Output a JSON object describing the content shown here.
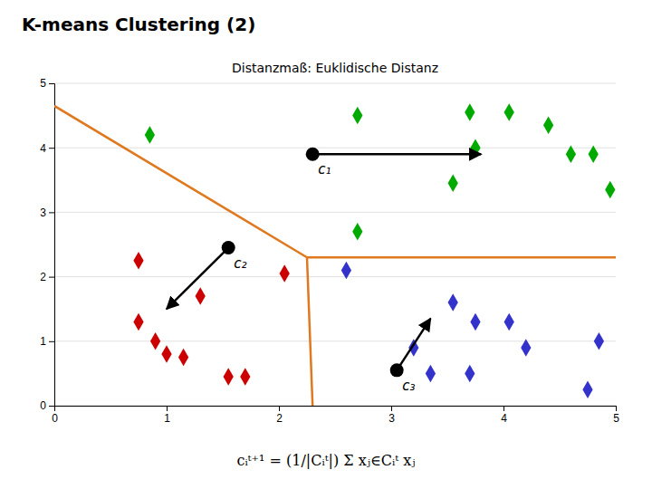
{
  "chart_data": {
    "type": "scatter",
    "title": "K-means Clustering (2)",
    "subtitle": "Distanzmaß: Euklidische Distanz",
    "xlim": [
      0,
      5
    ],
    "ylim": [
      0,
      5
    ],
    "xticks": [
      0,
      1,
      2,
      3,
      4,
      5
    ],
    "yticks": [
      0,
      1,
      2,
      3,
      4,
      5
    ],
    "grid": "y",
    "series": [
      {
        "color": "#00AA00",
        "marker": "diamond",
        "x": [
          0.85,
          2.7,
          3.7,
          4.05,
          4.4,
          3.75,
          4.6,
          4.8,
          3.55,
          4.95,
          2.7
        ],
        "y": [
          4.2,
          4.5,
          4.55,
          4.55,
          4.35,
          4.0,
          3.9,
          3.9,
          3.45,
          3.35,
          2.7
        ]
      },
      {
        "color": "#CC0000",
        "marker": "diamond",
        "x": [
          0.75,
          0.75,
          0.9,
          1.0,
          1.15,
          1.55,
          1.7,
          1.3,
          2.05
        ],
        "y": [
          2.25,
          1.3,
          1.0,
          0.8,
          0.75,
          0.45,
          0.45,
          1.7,
          2.05
        ]
      },
      {
        "color": "#3333CC",
        "marker": "diamond",
        "x": [
          2.6,
          3.2,
          3.35,
          3.7,
          3.75,
          4.05,
          4.2,
          4.85,
          4.75,
          3.55
        ],
        "y": [
          2.1,
          0.9,
          0.5,
          0.5,
          1.3,
          1.3,
          0.9,
          1.0,
          0.25,
          1.6
        ]
      }
    ],
    "centroids": [
      {
        "label": "c₁",
        "old": [
          2.3,
          3.9
        ],
        "new": [
          3.8,
          3.9
        ]
      },
      {
        "label": "c₂",
        "old": [
          1.55,
          2.45
        ],
        "new": [
          1.0,
          1.5
        ]
      },
      {
        "label": "c₃",
        "old": [
          3.05,
          0.55
        ],
        "new": [
          3.35,
          1.35
        ]
      }
    ],
    "boundary": {
      "color": "#E07820",
      "lines": [
        {
          "x": [
            0,
            2.25
          ],
          "y": [
            4.65,
            2.3
          ]
        },
        {
          "x": [
            2.25,
            5
          ],
          "y": [
            2.3,
            2.3
          ]
        },
        {
          "x": [
            2.25,
            2.3
          ],
          "y": [
            2.3,
            0
          ]
        }
      ]
    },
    "formula": "cᵢᵗ⁺¹ = (1/|Cᵢᵗ|) Σ xⱼ∈Cᵢᵗ xⱼ"
  }
}
